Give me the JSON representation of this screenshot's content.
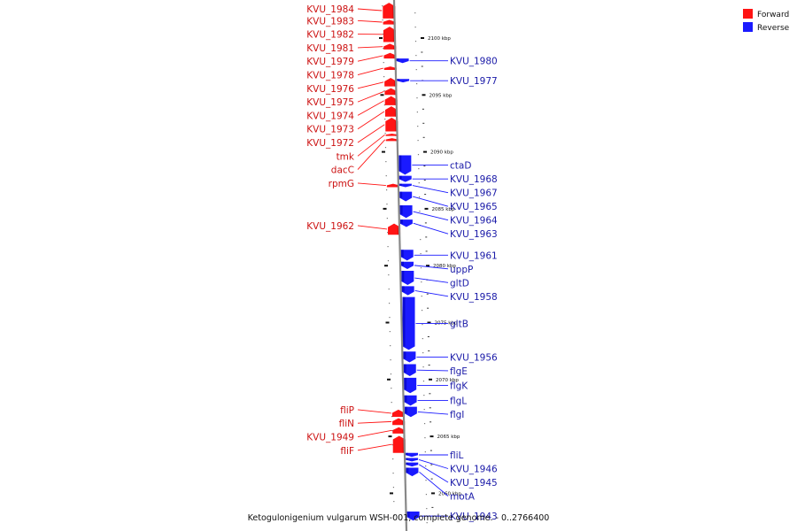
{
  "colors": {
    "forward": "#ff1414",
    "forward_shade": "#c00000",
    "reverse": "#1a1aff",
    "reverse_shade": "#0000b0",
    "label_forward": "#cc1111",
    "label_reverse": "#1a1aa8",
    "backbone": "#888888"
  },
  "legend": [
    {
      "label": "Forward",
      "color": "#ff1414"
    },
    {
      "label": "Reverse",
      "color": "#1a1aff"
    }
  ],
  "caption": "Ketogulonigenium vulgarum WSH-001, complete genome. - 0..2766400",
  "scale_ticks": [
    {
      "label": "2100 kbp",
      "kbp": 2100
    },
    {
      "label": "2095 kbp",
      "kbp": 2095
    },
    {
      "label": "2090 kbp",
      "kbp": 2090
    },
    {
      "label": "2085 kbp",
      "kbp": 2085
    },
    {
      "label": "2080 kbp",
      "kbp": 2080
    },
    {
      "label": "2075 kbp",
      "kbp": 2075
    },
    {
      "label": "2070 kbp",
      "kbp": 2070
    },
    {
      "label": "2065 kbp",
      "kbp": 2065
    },
    {
      "label": "2060 kbp",
      "kbp": 2060
    }
  ],
  "forward_genes": [
    {
      "label": "KVU_1984",
      "start_kbp": 2101.72,
      "end_kbp": 2103.1
    },
    {
      "label": "KVU_1983",
      "start_kbp": 2101.2,
      "end_kbp": 2101.6
    },
    {
      "label": "KVU_1982",
      "start_kbp": 2099.65,
      "end_kbp": 2101.0
    },
    {
      "label": "KVU_1981",
      "start_kbp": 2099.0,
      "end_kbp": 2099.5
    },
    {
      "label": "KVU_1979",
      "start_kbp": 2098.2,
      "end_kbp": 2098.7
    },
    {
      "label": "KVU_1978",
      "start_kbp": 2097.2,
      "end_kbp": 2097.5
    },
    {
      "label": "KVU_1976",
      "start_kbp": 2095.75,
      "end_kbp": 2096.5
    },
    {
      "label": "KVU_1975",
      "start_kbp": 2095.0,
      "end_kbp": 2095.6
    },
    {
      "label": "KVU_1974",
      "start_kbp": 2094.1,
      "end_kbp": 2094.9
    },
    {
      "label": "KVU_1973",
      "start_kbp": 2093.1,
      "end_kbp": 2094.0
    },
    {
      "label": "KVU_1972",
      "start_kbp": 2091.8,
      "end_kbp": 2093.0
    },
    {
      "label": "tmk",
      "start_kbp": 2091.4,
      "end_kbp": 2091.6
    },
    {
      "label": "dacC",
      "start_kbp": 2090.95,
      "end_kbp": 2091.2
    },
    {
      "label": "rpmG",
      "start_kbp": 2086.9,
      "end_kbp": 2087.2
    },
    {
      "label": "KVU_1962",
      "start_kbp": 2082.72,
      "end_kbp": 2083.7
    },
    {
      "label": "fliP",
      "start_kbp": 2066.72,
      "end_kbp": 2067.35
    },
    {
      "label": "fliN",
      "start_kbp": 2066.0,
      "end_kbp": 2066.6
    },
    {
      "label": "KVU_1949",
      "start_kbp": 2065.25,
      "end_kbp": 2065.8
    },
    {
      "label": "fliF",
      "start_kbp": 2063.55,
      "end_kbp": 2065.05
    }
  ],
  "reverse_genes": [
    {
      "label": "KVU_1980",
      "start_kbp": 2097.8,
      "end_kbp": 2098.2
    },
    {
      "label": "KVU_1977",
      "start_kbp": 2096.1,
      "end_kbp": 2096.4
    },
    {
      "label": "ctaD",
      "start_kbp": 2088.0,
      "end_kbp": 2089.7
    },
    {
      "label": "KVU_1968",
      "start_kbp": 2087.35,
      "end_kbp": 2087.9
    },
    {
      "label": "KVU_1967",
      "start_kbp": 2086.9,
      "end_kbp": 2087.2
    },
    {
      "label": "KVU_1965",
      "start_kbp": 2085.65,
      "end_kbp": 2086.5
    },
    {
      "label": "KVU_1964",
      "start_kbp": 2084.2,
      "end_kbp": 2085.3
    },
    {
      "label": "KVU_1963",
      "start_kbp": 2083.4,
      "end_kbp": 2084.05
    },
    {
      "label": "KVU_1961",
      "start_kbp": 2080.45,
      "end_kbp": 2081.4
    },
    {
      "label": "uppP",
      "start_kbp": 2079.7,
      "end_kbp": 2080.35
    },
    {
      "label": "gltD",
      "start_kbp": 2078.3,
      "end_kbp": 2079.55
    },
    {
      "label": "KVU_1958",
      "start_kbp": 2077.4,
      "end_kbp": 2078.2
    },
    {
      "label": "gltB",
      "start_kbp": 2072.6,
      "end_kbp": 2077.25
    },
    {
      "label": "KVU_1956",
      "start_kbp": 2071.5,
      "end_kbp": 2072.45
    },
    {
      "label": "flgE",
      "start_kbp": 2070.3,
      "end_kbp": 2071.35
    },
    {
      "label": "flgK",
      "start_kbp": 2068.8,
      "end_kbp": 2070.15
    },
    {
      "label": "flgL",
      "start_kbp": 2067.7,
      "end_kbp": 2068.6
    },
    {
      "label": "flgI",
      "start_kbp": 2066.7,
      "end_kbp": 2067.6
    },
    {
      "label": "fliL",
      "start_kbp": 2063.2,
      "end_kbp": 2063.55
    },
    {
      "label": "KVU_1946",
      "start_kbp": 2062.8,
      "end_kbp": 2063.1
    },
    {
      "label": "KVU_1945",
      "start_kbp": 2062.35,
      "end_kbp": 2062.7
    },
    {
      "label": "motA",
      "start_kbp": 2061.5,
      "end_kbp": 2062.25
    },
    {
      "label": "KVU_1943",
      "start_kbp": 2057.6,
      "end_kbp": 2058.4
    }
  ]
}
